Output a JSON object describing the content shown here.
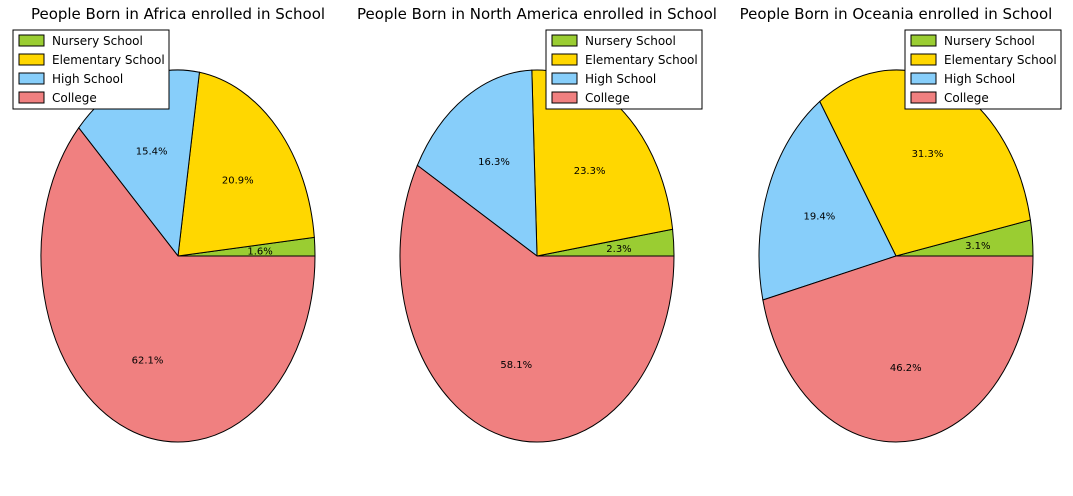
{
  "chart_data": [
    {
      "type": "pie",
      "title": "People Born in Africa enrolled in School",
      "categories": [
        "Nursery School",
        "Elementary School",
        "High School",
        "College"
      ],
      "values": [
        1.6,
        20.9,
        15.4,
        62.1
      ],
      "labels": [
        "1.6%",
        "20.9%",
        "15.4%",
        "62.1%"
      ],
      "legend": "top-left"
    },
    {
      "type": "pie",
      "title": "People Born in North America enrolled in School",
      "categories": [
        "Nursery School",
        "Elementary School",
        "High School",
        "College"
      ],
      "values": [
        2.3,
        23.3,
        16.3,
        58.1
      ],
      "labels": [
        "2.3%",
        "23.3%",
        "16.3%",
        "58.1%"
      ],
      "legend": "top-right"
    },
    {
      "type": "pie",
      "title": "People Born in Oceania enrolled in School",
      "categories": [
        "Nursery School",
        "Elementary School",
        "High School",
        "College"
      ],
      "values": [
        3.1,
        31.3,
        19.4,
        46.2
      ],
      "labels": [
        "3.1%",
        "31.3%",
        "19.4%",
        "46.2%"
      ],
      "legend": "top-right"
    }
  ],
  "colors": [
    "#9acd32",
    "#ffd700",
    "#87cefa",
    "#f08080"
  ]
}
